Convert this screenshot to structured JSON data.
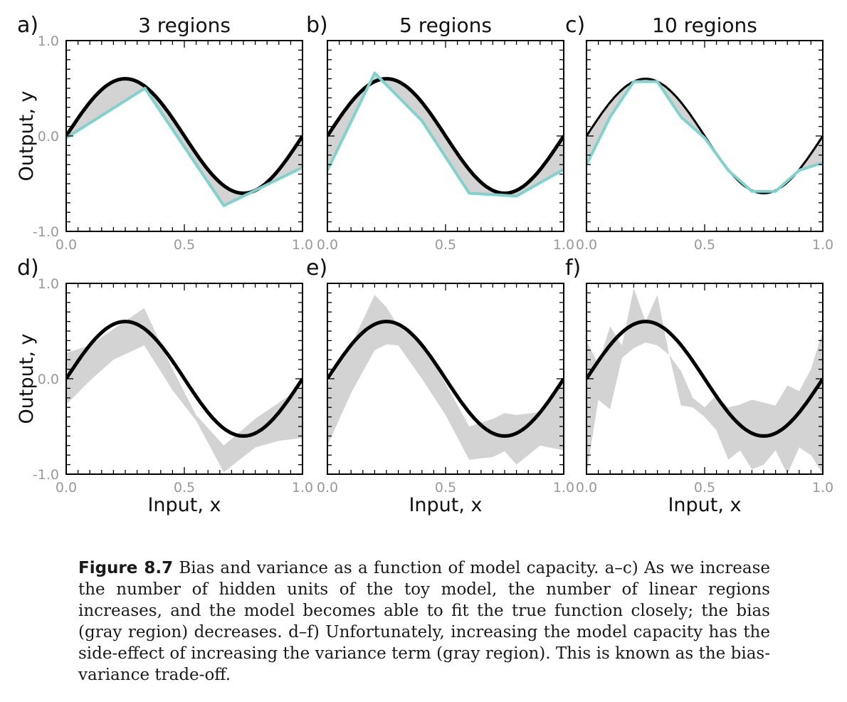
{
  "caption": {
    "label": "Figure 8.7",
    "text": "Bias and variance as a function of model capacity. a–c) As we increase the number of hidden units of the toy model, the number of linear regions increases, and the model becomes able to fit the true function closely; the bias (gray region) decreases. d–f) Unfortunately, increasing the model capacity has the side-effect of increasing the variance term (gray region). This is known as the bias-variance trade-off."
  },
  "colors": {
    "true_function": "#000000",
    "fit": "#7fd3cc",
    "band": "#d3d3d3"
  },
  "chart_data": [
    {
      "panel": "a)",
      "title": "3 regions",
      "type": "line",
      "xlabel": "",
      "ylabel": "Output, y",
      "xlim": [
        0,
        1
      ],
      "ylim": [
        -1,
        1
      ],
      "xticks": [
        "0.0",
        "0.5",
        "1.0"
      ],
      "yticks": [
        "1.0",
        "0.0",
        "-1.0"
      ],
      "true_function": "y = 0.6*sin(2*pi*x)",
      "fit": {
        "x": [
          0,
          0.333,
          0.667,
          1.0
        ],
        "y": [
          -0.02,
          0.5,
          -0.73,
          -0.33
        ]
      },
      "bias_region": "between true function and fit"
    },
    {
      "panel": "b)",
      "title": "5 regions",
      "type": "line",
      "xlabel": "",
      "ylabel": "",
      "xlim": [
        0,
        1
      ],
      "ylim": [
        -1,
        1
      ],
      "xticks": [
        "0.0",
        "0.5",
        "1.0"
      ],
      "yticks": [],
      "true_function": "y = 0.6*sin(2*pi*x)",
      "fit": {
        "x": [
          0,
          0.2,
          0.4,
          0.6,
          0.8,
          1.0
        ],
        "y": [
          -0.36,
          0.66,
          0.16,
          -0.6,
          -0.63,
          -0.35
        ]
      },
      "bias_region": "between true function and fit"
    },
    {
      "panel": "c)",
      "title": "10 regions",
      "type": "line",
      "xlabel": "",
      "ylabel": "",
      "xlim": [
        0,
        1
      ],
      "ylim": [
        -1,
        1
      ],
      "xticks": [
        "0.0",
        "0.5",
        "1.0"
      ],
      "yticks": [],
      "true_function": "y = 0.6*sin(2*pi*x)",
      "fit": {
        "x": [
          0,
          0.1,
          0.2,
          0.3,
          0.4,
          0.5,
          0.6,
          0.7,
          0.8,
          0.9,
          1.0
        ],
        "y": [
          -0.3,
          0.2,
          0.57,
          0.57,
          0.2,
          -0.02,
          -0.36,
          -0.58,
          -0.58,
          -0.36,
          -0.28
        ]
      },
      "bias_region": "between true function and fit"
    },
    {
      "panel": "d)",
      "title": "",
      "type": "area",
      "xlabel": "Input, x",
      "ylabel": "Output, y",
      "xlim": [
        0,
        1
      ],
      "ylim": [
        -1,
        1
      ],
      "xticks": [
        "0.0",
        "0.5",
        "1.0"
      ],
      "yticks": [
        "1.0",
        "0.0",
        "-1.0"
      ],
      "true_function": "y = 0.6*sin(2*pi*x)",
      "variance_band": {
        "x": [
          0,
          0.1,
          0.2,
          0.33,
          0.45,
          0.55,
          0.667,
          0.8,
          0.9,
          1.0
        ],
        "upper": [
          0.27,
          0.35,
          0.52,
          0.74,
          0.1,
          -0.38,
          -0.7,
          -0.42,
          -0.25,
          -0.08
        ],
        "lower": [
          -0.27,
          -0.02,
          0.2,
          0.35,
          -0.12,
          -0.44,
          -0.98,
          -0.72,
          -0.65,
          -0.62
        ]
      }
    },
    {
      "panel": "e)",
      "title": "",
      "type": "area",
      "xlabel": "Input, x",
      "ylabel": "",
      "xlim": [
        0,
        1
      ],
      "ylim": [
        -1,
        1
      ],
      "xticks": [
        "0.0",
        "0.5",
        "1.0"
      ],
      "yticks": [],
      "true_function": "y = 0.6*sin(2*pi*x)",
      "variance_band": {
        "x": [
          0,
          0.1,
          0.2,
          0.25,
          0.3,
          0.4,
          0.5,
          0.6,
          0.7,
          0.75,
          0.8,
          0.9,
          1.0
        ],
        "upper": [
          -0.05,
          0.35,
          0.88,
          0.75,
          0.55,
          0.38,
          -0.05,
          -0.5,
          -0.42,
          -0.36,
          -0.38,
          -0.35,
          0.0
        ],
        "lower": [
          -0.7,
          -0.15,
          0.3,
          0.36,
          0.35,
          0.0,
          -0.38,
          -0.85,
          -0.82,
          -0.76,
          -0.9,
          -0.7,
          -0.75
        ]
      }
    },
    {
      "panel": "f)",
      "title": "",
      "type": "area",
      "xlabel": "Input, x",
      "ylabel": "",
      "xlim": [
        0,
        1
      ],
      "ylim": [
        -1,
        1
      ],
      "xticks": [
        "0.0",
        "0.5",
        "1.0"
      ],
      "yticks": [],
      "true_function": "y = 0.6*sin(2*pi*x)",
      "variance_band": {
        "x": [
          0,
          0.05,
          0.1,
          0.15,
          0.2,
          0.25,
          0.3,
          0.35,
          0.4,
          0.45,
          0.5,
          0.55,
          0.6,
          0.65,
          0.7,
          0.75,
          0.8,
          0.85,
          0.9,
          0.95,
          1.0
        ],
        "upper": [
          0.4,
          0.15,
          0.55,
          0.35,
          0.95,
          0.6,
          0.88,
          0.25,
          0.08,
          -0.2,
          -0.3,
          -0.17,
          -0.3,
          -0.27,
          -0.22,
          -0.25,
          -0.28,
          -0.07,
          -0.13,
          0.1,
          0.5
        ],
        "lower": [
          -1.0,
          -0.22,
          -0.32,
          0.22,
          0.32,
          0.38,
          0.35,
          0.25,
          -0.28,
          -0.3,
          -0.4,
          -0.54,
          -0.85,
          -0.75,
          -0.95,
          -0.9,
          -0.75,
          -1.0,
          -0.72,
          -0.8,
          -1.0
        ]
      }
    }
  ]
}
